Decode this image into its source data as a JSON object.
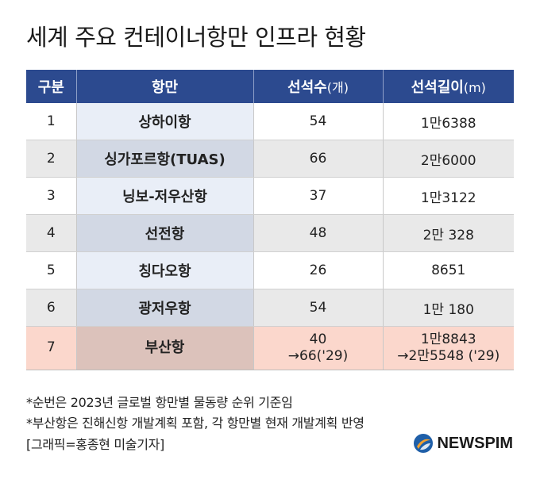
{
  "title": "세계 주요 컨테이너항만 인프라 현황",
  "table": {
    "headers": {
      "rank": "구분",
      "port": "항만",
      "berths": "선석수",
      "berths_unit": "(개)",
      "length": "선석길이",
      "length_unit": "(m)"
    },
    "rows": [
      {
        "rank": "1",
        "port": "상하이항",
        "berths": "54",
        "length": "1만6388"
      },
      {
        "rank": "2",
        "port": "싱가포르항(TUAS)",
        "berths": "66",
        "length": "2만6000"
      },
      {
        "rank": "3",
        "port": "닝보-저우산항",
        "berths": "37",
        "length": "1만3122"
      },
      {
        "rank": "4",
        "port": "선전항",
        "berths": "48",
        "length": "2만 328"
      },
      {
        "rank": "5",
        "port": "칭다오항",
        "berths": "26",
        "length": "8651"
      },
      {
        "rank": "6",
        "port": "광저우항",
        "berths": "54",
        "length": "1만 180"
      }
    ],
    "busan": {
      "rank": "7",
      "port": "부산항",
      "berths": "40",
      "berths_future": "→66('29)",
      "length": "1만8843",
      "length_future": "→2만5548 ('29)"
    }
  },
  "notes": [
    "*순번은 2023년 글로벌 항만별 물동량 순위 기준임",
    "*부산항은 진해신항 개발계획 포함, 각 항만별 현재 개발계획 반영",
    "[그래픽=홍종현 미술기자]"
  ],
  "logo": {
    "text": "NEWSPIM",
    "icon": "newspim-logo-icon",
    "colors": {
      "blue": "#1f5fa8",
      "orange": "#f0a030"
    }
  },
  "colors": {
    "header": "#2c4a8f",
    "highlight": "#fbd7cc"
  }
}
